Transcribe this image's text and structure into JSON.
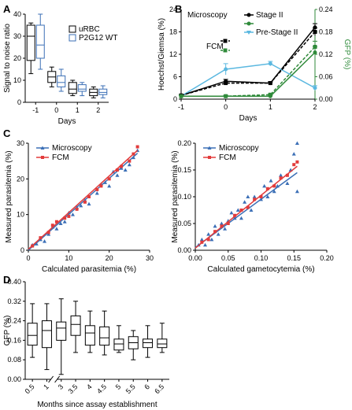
{
  "chart_data": [
    {
      "panel": "A",
      "type": "boxplot",
      "xlabel": "Days",
      "ylabel": "Signal to noise ratio",
      "ylim": [
        0,
        40
      ],
      "yticks": [
        0,
        10,
        20,
        30,
        40
      ],
      "categories": [
        "-1",
        "0",
        "1",
        "2"
      ],
      "series": [
        {
          "name": "uRBC",
          "color": "#000000",
          "boxes": [
            [
              13,
              19,
              30,
              35,
              36
            ],
            [
              7,
              9,
              11.5,
              14,
              16
            ],
            [
              3,
              4,
              6,
              9,
              10
            ],
            [
              2,
              3,
              4.5,
              6,
              7
            ]
          ]
        },
        {
          "name": "P2G12 WT",
          "color": "#3b6fb6",
          "boxes": [
            [
              15,
              20,
              26,
              35,
              40
            ],
            [
              5,
              7,
              9,
              12,
              15
            ],
            [
              3,
              5,
              6,
              8,
              9
            ],
            [
              2,
              3.5,
              4.5,
              6,
              7.5
            ]
          ]
        }
      ]
    },
    {
      "panel": "B",
      "type": "line",
      "xlabel": "Days",
      "ylabel_left": "Hoechst/Giemsa (%)",
      "ylabel_right": "GFP (%)",
      "x": [
        -1,
        0,
        1,
        2
      ],
      "ylim_left": [
        0,
        24
      ],
      "yticks_left": [
        0,
        6,
        12,
        18,
        24
      ],
      "ylim_right": [
        0,
        0.24
      ],
      "yticks_right": [
        "0.00",
        "0.06",
        "0.12",
        "0.18",
        "0.24"
      ],
      "legend_headers": [
        "Microscopy",
        "FCM"
      ],
      "series": [
        {
          "name": "Stage II",
          "color": "#000000",
          "axis": "left",
          "dash": false,
          "values": [
            1,
            4.8,
            4.3,
            19.2
          ],
          "err": [
            0.2,
            0.5,
            0.4,
            1
          ]
        },
        {
          "name": "Pre-Stage II",
          "color": "#5bb8e0",
          "axis": "left",
          "dash": false,
          "values": [
            0.8,
            8,
            9.5,
            3
          ],
          "err": [
            0.2,
            1.5,
            0.6,
            0.6
          ]
        },
        {
          "name": "",
          "color": "#000000",
          "axis": "left",
          "dash": true,
          "values": [
            1,
            4.3,
            4.3,
            18
          ],
          "err": [
            0,
            0.3,
            0.3,
            1
          ]
        },
        {
          "name": "",
          "color": "#2f8a3a",
          "axis": "right",
          "dash": false,
          "values": [
            0.008,
            0.008,
            0.008,
            0.125
          ],
          "err": [
            0.002,
            0.002,
            0.002,
            0.015
          ]
        },
        {
          "name": "",
          "color": "#2f8a3a",
          "axis": "right",
          "dash": true,
          "values": [
            0.008,
            0.008,
            0.012,
            0.14
          ],
          "err": [
            0.002,
            0.002,
            0.002,
            0.015
          ]
        }
      ],
      "legend_rows": [
        {
          "label": "Microscopy",
          "marker": "none"
        },
        {
          "label": "",
          "marker": "black-solid"
        },
        {
          "label": "Stage II",
          "marker": "green-solid"
        },
        {
          "label": "Pre-Stage II",
          "marker": "blue-solid"
        },
        {
          "label": "FCM",
          "marker": "black-dash-green-dash"
        }
      ]
    },
    {
      "panel": "C1",
      "type": "scatter",
      "xlabel": "Calculated parasitemia (%)",
      "ylabel": "Measured parasitemia (%)",
      "xlim": [
        0,
        30
      ],
      "ylim": [
        0,
        30
      ],
      "xticks": [
        0,
        10,
        20,
        30
      ],
      "yticks": [
        0,
        10,
        20,
        30
      ],
      "series": [
        {
          "name": "Microscopy",
          "color": "#3b6fb6",
          "marker": "triangle",
          "points": [
            [
              1,
              1.5
            ],
            [
              2,
              1.8
            ],
            [
              3,
              3
            ],
            [
              4,
              2.5
            ],
            [
              5,
              4.5
            ],
            [
              6,
              6.5
            ],
            [
              7,
              6
            ],
            [
              8,
              7.5
            ],
            [
              9,
              8
            ],
            [
              10,
              10.5
            ],
            [
              11,
              10
            ],
            [
              12,
              12
            ],
            [
              13,
              12.5
            ],
            [
              14,
              14
            ],
            [
              15,
              13
            ],
            [
              17,
              16
            ],
            [
              18,
              18.5
            ],
            [
              19,
              19
            ],
            [
              20,
              18
            ],
            [
              21,
              22
            ],
            [
              22,
              21
            ],
            [
              23,
              23
            ],
            [
              24,
              22.5
            ],
            [
              25,
              24
            ],
            [
              26,
              26
            ],
            [
              27,
              28
            ]
          ],
          "fit": [
            [
              0,
              0
            ],
            [
              27,
              27.2
            ]
          ]
        },
        {
          "name": "FCM",
          "color": "#e23b3b",
          "marker": "square",
          "points": [
            [
              1,
              1.2
            ],
            [
              3,
              3.5
            ],
            [
              5,
              5
            ],
            [
              6,
              7
            ],
            [
              7,
              8
            ],
            [
              9,
              9
            ],
            [
              10,
              9.5
            ],
            [
              12,
              11.5
            ],
            [
              14,
              13.5
            ],
            [
              15,
              15
            ],
            [
              17,
              17
            ],
            [
              18,
              18
            ],
            [
              20,
              20
            ],
            [
              22,
              22.5
            ],
            [
              23,
              23.5
            ],
            [
              25,
              25
            ],
            [
              26,
              27
            ],
            [
              27,
              29
            ]
          ],
          "fit": [
            [
              0,
              0.3
            ],
            [
              27,
              28
            ]
          ]
        }
      ]
    },
    {
      "panel": "C2",
      "type": "scatter",
      "xlabel": "Calculated gametocytemia (%)",
      "ylabel": "Measured parasitemia (%)",
      "xlim": [
        0,
        0.2
      ],
      "ylim": [
        0,
        0.2
      ],
      "xticks": [
        "0.00",
        "0.05",
        "0.10",
        "0.15",
        "0.20"
      ],
      "yticks": [
        "0.00",
        "0.05",
        "0.10",
        "0.15",
        "0.20"
      ],
      "series": [
        {
          "name": "Microscopy",
          "color": "#3b6fb6",
          "marker": "triangle",
          "points": [
            [
              0.005,
              0.01
            ],
            [
              0.01,
              0.02
            ],
            [
              0.015,
              0.01
            ],
            [
              0.02,
              0.03
            ],
            [
              0.025,
              0.02
            ],
            [
              0.03,
              0.045
            ],
            [
              0.035,
              0.03
            ],
            [
              0.04,
              0.05
            ],
            [
              0.045,
              0.04
            ],
            [
              0.05,
              0.055
            ],
            [
              0.055,
              0.07
            ],
            [
              0.06,
              0.06
            ],
            [
              0.065,
              0.075
            ],
            [
              0.07,
              0.06
            ],
            [
              0.075,
              0.09
            ],
            [
              0.08,
              0.1
            ],
            [
              0.085,
              0.075
            ],
            [
              0.09,
              0.1
            ],
            [
              0.1,
              0.095
            ],
            [
              0.105,
              0.12
            ],
            [
              0.11,
              0.1
            ],
            [
              0.115,
              0.13
            ],
            [
              0.12,
              0.11
            ],
            [
              0.125,
              0.12
            ],
            [
              0.13,
              0.14
            ],
            [
              0.14,
              0.125
            ],
            [
              0.145,
              0.15
            ],
            [
              0.15,
              0.18
            ],
            [
              0.155,
              0.2
            ],
            [
              0.155,
              0.11
            ]
          ],
          "fit": [
            [
              0,
              0.005
            ],
            [
              0.155,
              0.145
            ]
          ]
        },
        {
          "name": "FCM",
          "color": "#e23b3b",
          "marker": "square",
          "points": [
            [
              0.01,
              0.015
            ],
            [
              0.02,
              0.02
            ],
            [
              0.03,
              0.035
            ],
            [
              0.04,
              0.045
            ],
            [
              0.05,
              0.05
            ],
            [
              0.06,
              0.065
            ],
            [
              0.07,
              0.075
            ],
            [
              0.08,
              0.08
            ],
            [
              0.09,
              0.095
            ],
            [
              0.1,
              0.1
            ],
            [
              0.11,
              0.115
            ],
            [
              0.12,
              0.12
            ],
            [
              0.13,
              0.135
            ],
            [
              0.14,
              0.14
            ],
            [
              0.15,
              0.16
            ],
            [
              0.155,
              0.165
            ]
          ],
          "fit": [
            [
              0,
              0.004
            ],
            [
              0.155,
              0.157
            ]
          ]
        }
      ]
    },
    {
      "panel": "D",
      "type": "boxplot",
      "xlabel": "Months since assay establishment",
      "ylabel": "GFP (%)",
      "ylim": [
        0,
        0.4
      ],
      "yticks": [
        "0.00",
        "0.08",
        "0.16",
        "0.24",
        "0.32",
        "0.40"
      ],
      "categories": [
        "0.5",
        "1",
        "3",
        "3.5",
        "4",
        "4.5",
        "5",
        "5.5",
        "6",
        "6.5"
      ],
      "axis_break_after_index": 1,
      "color": "#000000",
      "boxes": [
        [
          0.09,
          0.14,
          0.18,
          0.23,
          0.31
        ],
        [
          0.04,
          0.13,
          0.2,
          0.24,
          0.31
        ],
        [
          0.02,
          0.16,
          0.21,
          0.235,
          0.33
        ],
        [
          0.11,
          0.18,
          0.225,
          0.26,
          0.32
        ],
        [
          0.11,
          0.14,
          0.19,
          0.22,
          0.28
        ],
        [
          0.1,
          0.14,
          0.17,
          0.215,
          0.28
        ],
        [
          0.11,
          0.12,
          0.145,
          0.165,
          0.22
        ],
        [
          0.08,
          0.125,
          0.15,
          0.175,
          0.2
        ],
        [
          0.09,
          0.13,
          0.15,
          0.165,
          0.22
        ],
        [
          0.11,
          0.13,
          0.145,
          0.165,
          0.23
        ]
      ]
    }
  ],
  "labels": {
    "panel_a": "A",
    "panel_b": "B",
    "panel_c": "C",
    "panel_d": "D"
  }
}
